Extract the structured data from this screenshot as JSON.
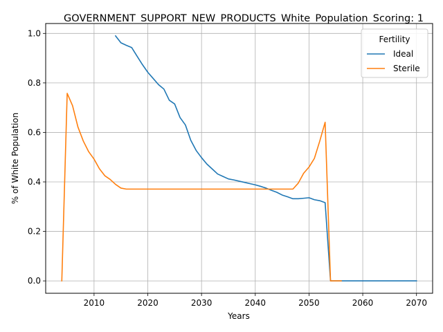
{
  "chart_data": {
    "type": "line",
    "title": "GOVERNMENT_SUPPORT_NEW_PRODUCTS_White_Population_Scoring: 1",
    "xlabel": "Years",
    "ylabel": "% of White Population",
    "xlim": [
      2001,
      2073
    ],
    "ylim": [
      -0.05,
      1.04
    ],
    "xticks": [
      2010,
      2020,
      2030,
      2040,
      2050,
      2060,
      2070
    ],
    "yticks": [
      0.0,
      0.2,
      0.4,
      0.6,
      0.8,
      1.0
    ],
    "xtick_labels": [
      "2010",
      "2020",
      "2030",
      "2040",
      "2050",
      "2060",
      "2070"
    ],
    "ytick_labels": [
      "0.0",
      "0.2",
      "0.4",
      "0.6",
      "0.8",
      "1.0"
    ],
    "grid": true,
    "legend": {
      "title": "Fertility",
      "position": "top-right"
    },
    "series": [
      {
        "name": "Ideal",
        "color": "#1f77b4",
        "x": [
          2014,
          2015,
          2016,
          2017,
          2018,
          2019,
          2020,
          2021,
          2022,
          2023,
          2024,
          2025,
          2026,
          2027,
          2028,
          2029,
          2030,
          2031,
          2032,
          2033,
          2034,
          2035,
          2036,
          2037,
          2038,
          2039,
          2040,
          2041,
          2042,
          2043,
          2044,
          2045,
          2046,
          2047,
          2048,
          2049,
          2050,
          2051,
          2052,
          2053,
          2054,
          2055,
          2056,
          2057,
          2058,
          2059,
          2060,
          2061,
          2062,
          2063,
          2064,
          2065,
          2066,
          2067,
          2068,
          2069,
          2070
        ],
        "y": [
          0.99,
          0.962,
          0.952,
          0.943,
          0.908,
          0.874,
          0.843,
          0.818,
          0.793,
          0.775,
          0.73,
          0.715,
          0.66,
          0.63,
          0.568,
          0.527,
          0.498,
          0.472,
          0.452,
          0.432,
          0.422,
          0.412,
          0.408,
          0.403,
          0.398,
          0.393,
          0.388,
          0.382,
          0.375,
          0.366,
          0.358,
          0.347,
          0.34,
          0.332,
          0.332,
          0.334,
          0.336,
          0.328,
          0.324,
          0.316,
          0.0,
          0.0,
          0.0,
          0.0,
          0.0,
          0.0,
          0.0,
          0.0,
          0.0,
          0.0,
          0.0,
          0.0,
          0.0,
          0.0,
          0.0,
          0.0,
          0.0
        ]
      },
      {
        "name": "Sterile",
        "color": "#ff7f0e",
        "x": [
          2004,
          2005,
          2006,
          2007,
          2008,
          2009,
          2010,
          2011,
          2012,
          2013,
          2014,
          2015,
          2016,
          2017,
          2018,
          2019,
          2020,
          2021,
          2022,
          2023,
          2024,
          2025,
          2026,
          2027,
          2028,
          2029,
          2030,
          2031,
          2032,
          2033,
          2034,
          2035,
          2036,
          2037,
          2038,
          2039,
          2040,
          2041,
          2042,
          2043,
          2044,
          2045,
          2046,
          2047,
          2048,
          2049,
          2050,
          2051,
          2052,
          2053,
          2054,
          2055,
          2056
        ],
        "y": [
          0.0,
          0.758,
          0.708,
          0.622,
          0.565,
          0.522,
          0.492,
          0.453,
          0.425,
          0.41,
          0.39,
          0.375,
          0.371,
          0.371,
          0.371,
          0.371,
          0.371,
          0.371,
          0.371,
          0.371,
          0.371,
          0.371,
          0.371,
          0.371,
          0.371,
          0.371,
          0.371,
          0.371,
          0.371,
          0.371,
          0.371,
          0.371,
          0.371,
          0.371,
          0.371,
          0.371,
          0.371,
          0.371,
          0.371,
          0.371,
          0.371,
          0.371,
          0.371,
          0.371,
          0.395,
          0.435,
          0.46,
          0.495,
          0.565,
          0.641,
          0.0,
          0.0,
          0.0
        ]
      }
    ]
  }
}
